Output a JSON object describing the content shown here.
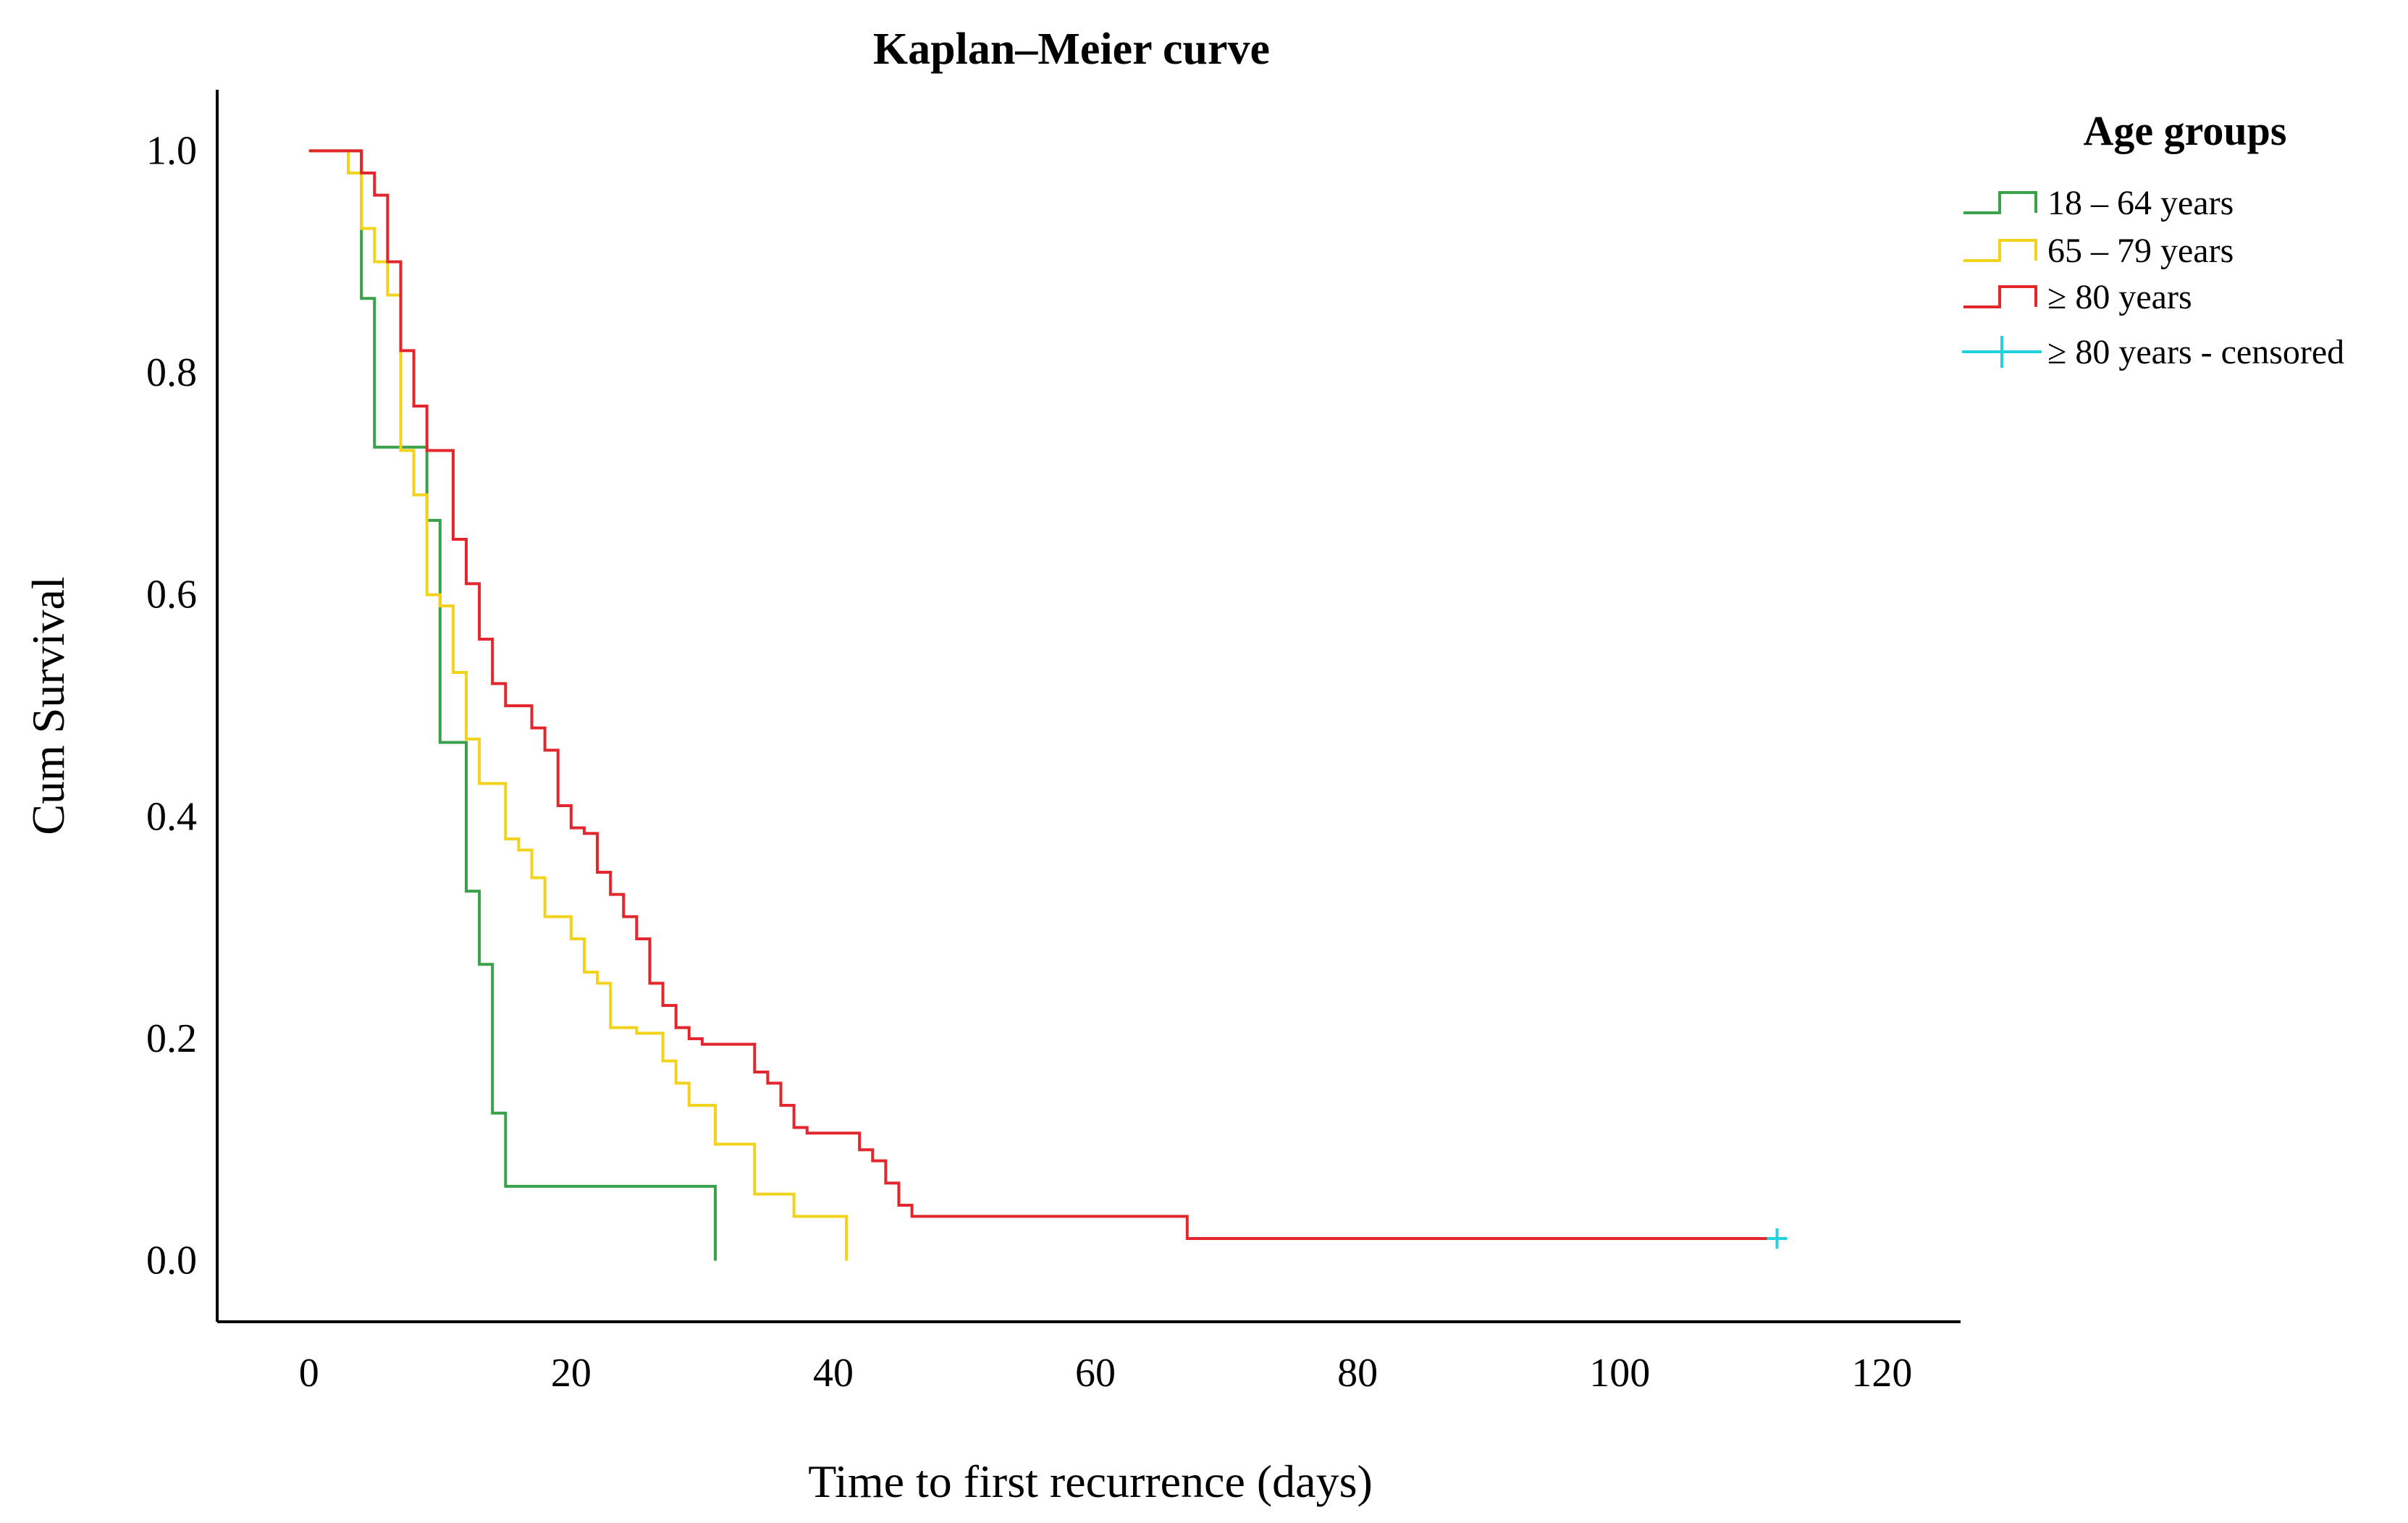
{
  "chart_data": {
    "type": "line",
    "subtype": "kaplan-meier step plot",
    "title": "Kaplan–Meier curve",
    "xlabel": "Time to first recurrence (days)",
    "ylabel": "Cum Survival",
    "xlim": [
      -7,
      126
    ],
    "ylim": [
      -0.055,
      1.055
    ],
    "xticks": [
      0,
      20,
      40,
      60,
      80,
      100,
      120
    ],
    "yticks": [
      0.0,
      0.2,
      0.4,
      0.6,
      0.8,
      1.0
    ],
    "x_tick_labels": [
      "0",
      "20",
      "40",
      "60",
      "80",
      "100",
      "120"
    ],
    "y_tick_labels": [
      "0.0",
      "0.2",
      "0.4",
      "0.6",
      "0.8",
      "1.0"
    ],
    "grid": false,
    "legend": {
      "title": "Age groups",
      "placement": "top-right outside plot",
      "entries": [
        "18 – 64 years",
        "65 – 79 years",
        "≥ 80 years",
        "≥ 80 years - censored"
      ]
    },
    "series": [
      {
        "name": "18 – 64 years",
        "color": "#3aa04a",
        "x": [
          0,
          4,
          5,
          9,
          10,
          12,
          13,
          14,
          15,
          31,
          31
        ],
        "y": [
          1.0,
          0.867,
          0.733,
          0.667,
          0.467,
          0.333,
          0.267,
          0.133,
          0.067,
          0.067,
          0.0
        ]
      },
      {
        "name": "65 – 79 years",
        "color": "#f2d21b",
        "x": [
          0,
          3,
          4,
          5,
          6,
          7,
          8,
          9,
          10,
          11,
          12,
          13,
          15,
          16,
          17,
          18,
          20,
          21,
          22,
          23,
          25,
          27,
          28,
          29,
          31,
          34,
          37,
          41,
          41
        ],
        "y": [
          1.0,
          0.98,
          0.93,
          0.9,
          0.87,
          0.73,
          0.69,
          0.6,
          0.59,
          0.53,
          0.47,
          0.43,
          0.38,
          0.37,
          0.345,
          0.31,
          0.29,
          0.26,
          0.25,
          0.21,
          0.205,
          0.18,
          0.16,
          0.14,
          0.105,
          0.06,
          0.04,
          0.025,
          0.0
        ]
      },
      {
        "name": "≥ 80 years",
        "color": "#e2262c",
        "x": [
          0,
          4,
          5,
          6,
          7,
          8,
          9,
          11,
          12,
          13,
          14,
          15,
          17,
          18,
          19,
          20,
          21,
          22,
          23,
          24,
          25,
          26,
          27,
          28,
          29,
          30,
          34,
          35,
          36,
          37,
          38,
          42,
          43,
          44,
          45,
          46,
          67,
          112
        ],
        "y": [
          1.0,
          0.98,
          0.96,
          0.9,
          0.82,
          0.77,
          0.73,
          0.65,
          0.61,
          0.56,
          0.52,
          0.5,
          0.48,
          0.46,
          0.41,
          0.39,
          0.385,
          0.35,
          0.33,
          0.31,
          0.29,
          0.25,
          0.23,
          0.21,
          0.2,
          0.195,
          0.17,
          0.16,
          0.14,
          0.12,
          0.115,
          0.1,
          0.09,
          0.07,
          0.05,
          0.04,
          0.02,
          0.02
        ]
      },
      {
        "name": "≥ 80 years - censored",
        "color": "#1fd4e0",
        "marker": "+",
        "x": [
          112
        ],
        "y": [
          0.02
        ]
      }
    ]
  }
}
